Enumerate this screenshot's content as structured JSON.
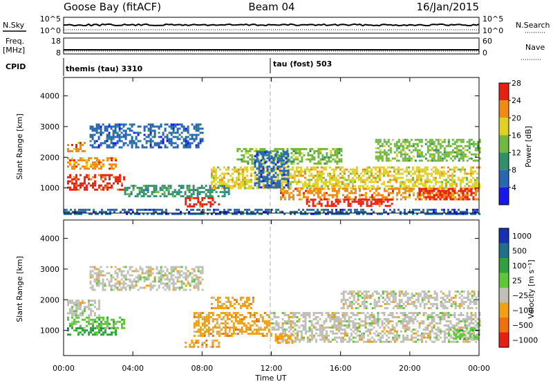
{
  "header": {
    "station": "Goose Bay (fitACF)",
    "beam": "Beam 04",
    "date": "16/Jan/2015"
  },
  "strips": {
    "nsky": {
      "label": "N.Sky",
      "left_ticks": [
        "10^5",
        "10^0"
      ],
      "right_ticks": [
        "10^5",
        "10^0"
      ],
      "right_label": "N.Search"
    },
    "freq": {
      "label": "Freq.",
      "unit": "[MHz]",
      "left_ticks": [
        "18",
        "8"
      ],
      "right_ticks": [
        "60",
        "0"
      ],
      "right_label": "Nave"
    },
    "cpid": {
      "label": "CPID",
      "programs": [
        {
          "name": "themis (tau) 3310",
          "start_hour": 0
        },
        {
          "name": "tau (fost) 503",
          "start_hour": 12
        }
      ]
    }
  },
  "chart_data": [
    {
      "type": "heatmap",
      "ylabel": "Slant Range [km]",
      "yticks": [
        1000,
        2000,
        3000,
        4000
      ],
      "ylim": [
        180,
        4600
      ],
      "xlim": [
        0,
        24
      ],
      "colorbar": {
        "label": "Power [dB]",
        "ticks": [
          "4",
          "8",
          "12",
          "16",
          "20",
          "24",
          "28"
        ],
        "colors": [
          "#1818e8",
          "#2868b0",
          "#30906a",
          "#70b840",
          "#e0d020",
          "#f08a10",
          "#e82010"
        ]
      },
      "bands": [
        {
          "t0": 0.2,
          "t1": 3.5,
          "r0": 950,
          "r1": 1450,
          "level": 6
        },
        {
          "t0": 0.2,
          "t1": 3.0,
          "r0": 1600,
          "r1": 2000,
          "level": 5
        },
        {
          "t0": 0.2,
          "t1": 1.2,
          "r0": 2200,
          "r1": 2500,
          "level": 5
        },
        {
          "t0": 1.5,
          "t1": 8.0,
          "r0": 2300,
          "r1": 3100,
          "level": 1
        },
        {
          "t0": 3.5,
          "t1": 9.5,
          "r0": 700,
          "r1": 1100,
          "level": 2
        },
        {
          "t0": 7.0,
          "t1": 9.0,
          "r0": 420,
          "r1": 700,
          "level": 6
        },
        {
          "t0": 8.5,
          "t1": 24.0,
          "r0": 1000,
          "r1": 1700,
          "level": 4
        },
        {
          "t0": 12.5,
          "t1": 24.0,
          "r0": 600,
          "r1": 1000,
          "level": 5
        },
        {
          "t0": 14.0,
          "t1": 19.0,
          "r0": 380,
          "r1": 650,
          "level": 6
        },
        {
          "t0": 20.5,
          "t1": 23.8,
          "r0": 600,
          "r1": 1000,
          "level": 6
        },
        {
          "t0": 10.0,
          "t1": 16.0,
          "r0": 1800,
          "r1": 2300,
          "level": 3
        },
        {
          "t0": 18.0,
          "t1": 24.0,
          "r0": 1900,
          "r1": 2600,
          "level": 3
        },
        {
          "t0": 11.0,
          "t1": 13.0,
          "r0": 1000,
          "r1": 2200,
          "level": 1
        },
        {
          "t0": 0.0,
          "t1": 24.0,
          "r0": 180,
          "r1": 320,
          "level": 1
        }
      ]
    },
    {
      "type": "heatmap",
      "ylabel": "Slant Range [km]",
      "yticks": [
        1000,
        2000,
        3000,
        4000
      ],
      "ylim": [
        180,
        4600
      ],
      "xlim": [
        0,
        24
      ],
      "xlabel": "Time UT",
      "xticks": [
        "00:00",
        "04:00",
        "08:00",
        "12:00",
        "16:00",
        "20:00",
        "00:00"
      ],
      "colorbar": {
        "label": "Velocity [m s⁻¹]",
        "ticks": [
          "1000",
          "500",
          "100",
          "25",
          "−25",
          "−100",
          "−500",
          "−1000"
        ],
        "colors": [
          "#1830b8",
          "#207088",
          "#30a040",
          "#60c838",
          "#c0c0b8",
          "#f0a010",
          "#f07010",
          "#e82010"
        ]
      },
      "bands": [
        {
          "t0": 0.2,
          "t1": 3.5,
          "r0": 1100,
          "r1": 1450,
          "level": 3
        },
        {
          "t0": 0.2,
          "t1": 3.0,
          "r0": 850,
          "r1": 1100,
          "level": 2
        },
        {
          "t0": 0.2,
          "t1": 2.0,
          "r0": 1500,
          "r1": 2000,
          "level": 4
        },
        {
          "t0": 1.5,
          "t1": 8.0,
          "r0": 2300,
          "r1": 3100,
          "level": 4
        },
        {
          "t0": 7.5,
          "t1": 12.0,
          "r0": 850,
          "r1": 1600,
          "level": 5
        },
        {
          "t0": 8.5,
          "t1": 11.0,
          "r0": 1700,
          "r1": 2100,
          "level": 5
        },
        {
          "t0": 7.0,
          "t1": 9.0,
          "r0": 450,
          "r1": 700,
          "level": 5
        },
        {
          "t0": 12.0,
          "t1": 24.0,
          "r0": 1000,
          "r1": 1600,
          "level": 4
        },
        {
          "t0": 12.5,
          "t1": 24.0,
          "r0": 600,
          "r1": 1000,
          "level": 4
        },
        {
          "t0": 12.2,
          "t1": 13.2,
          "r0": 600,
          "r1": 900,
          "level": 5
        },
        {
          "t0": 16.0,
          "t1": 24.0,
          "r0": 1700,
          "r1": 2300,
          "level": 4
        },
        {
          "t0": 22.5,
          "t1": 24.0,
          "r0": 700,
          "r1": 1100,
          "level": 3
        }
      ]
    }
  ]
}
